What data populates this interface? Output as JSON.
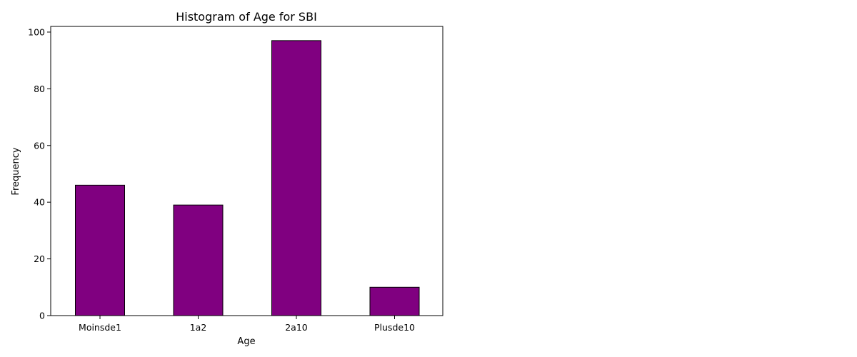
{
  "chart_data": {
    "type": "bar",
    "title": "Histogram of Age for SBI",
    "xlabel": "Age",
    "ylabel": "Frequency",
    "categories": [
      "Moinsde1",
      "1a2",
      "2a10",
      "Plusde10"
    ],
    "values": [
      46,
      39,
      97,
      10
    ],
    "ylim": [
      0,
      102
    ],
    "yticks": [
      0,
      20,
      40,
      60,
      80,
      100
    ],
    "grid": false,
    "colors": {
      "bar_fill": "#800080",
      "bar_edge": "#000000"
    }
  }
}
